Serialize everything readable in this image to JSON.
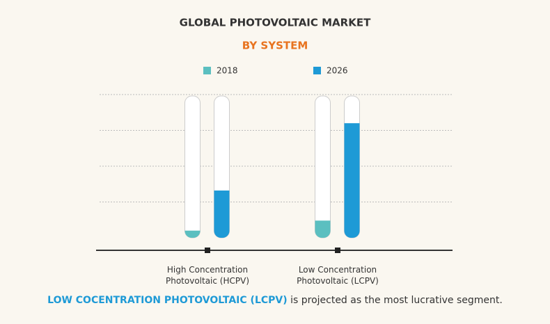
{
  "chart_data": {
    "type": "capsule-bar",
    "title": "GLOBAL PHOTOVOLTAIC MARKET",
    "subtitle": "BY SYSTEM",
    "categories": [
      "High Concentration Photovoltaic (HCPV)",
      "Low Concentration Photovoltaic (LCPV)"
    ],
    "series": [
      {
        "name": "2018",
        "color": "#5bbfc0",
        "values": [
          5,
          12
        ]
      },
      {
        "name": "2026",
        "color": "#1e9ad6",
        "values": [
          33,
          80
        ]
      }
    ],
    "ylim": [
      0,
      100
    ],
    "yticks": [
      25,
      50,
      75,
      100
    ],
    "grid": true,
    "annotation": {
      "highlight": "LOW COCENTRATION PHOTOVOLTAIC (LCPV)",
      "text": "is projected as the most lucrative segment."
    }
  }
}
